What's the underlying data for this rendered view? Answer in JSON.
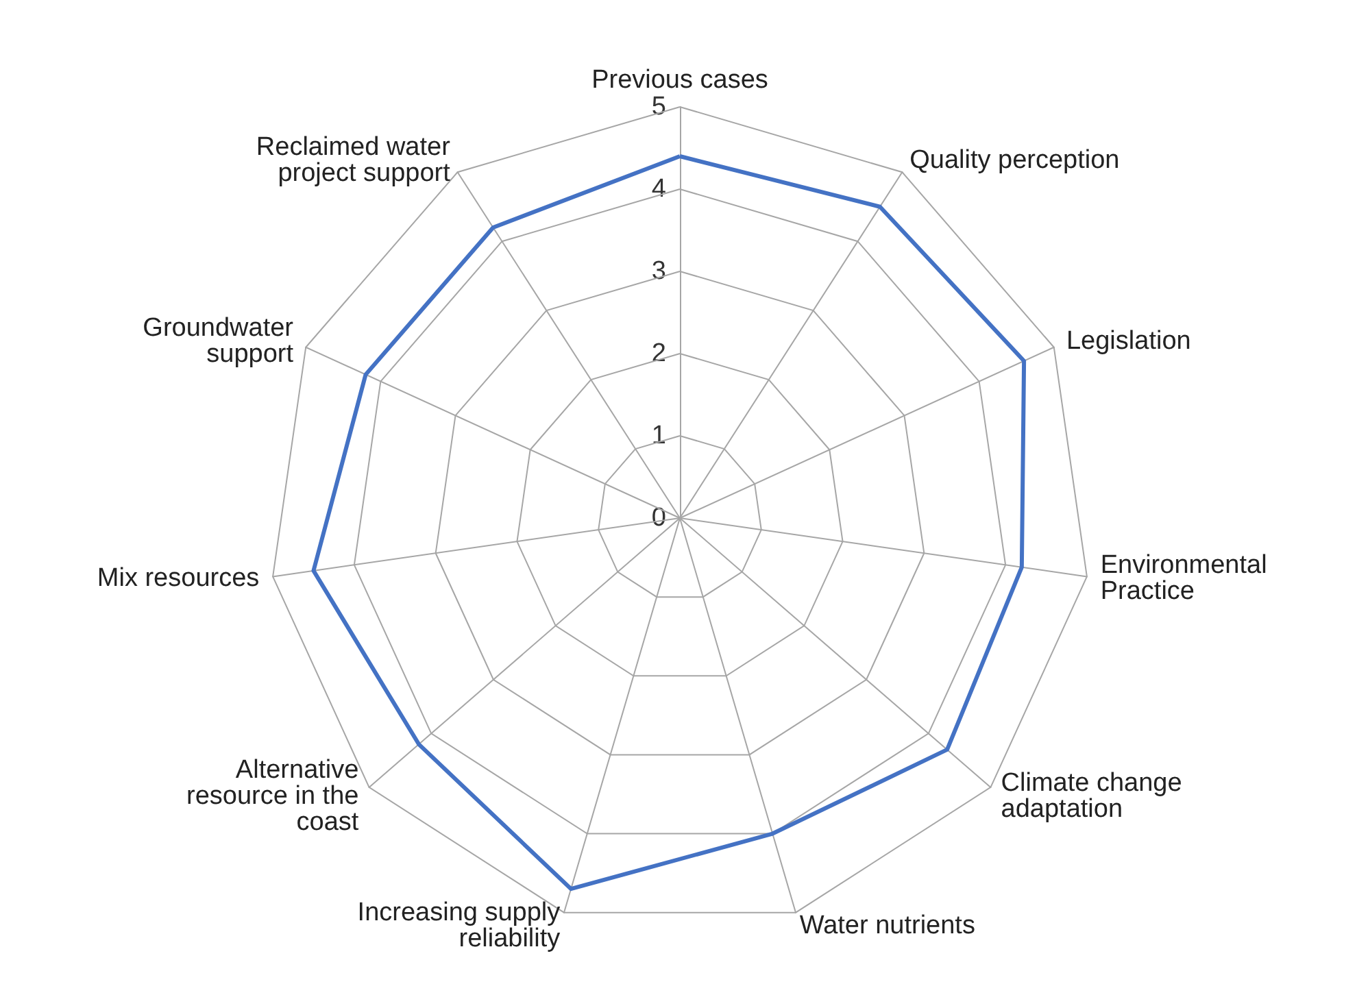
{
  "chart_data": {
    "type": "radar",
    "categories": [
      "Previous cases",
      "Quality perception",
      "Legislation",
      "Environmental Practice",
      "Climate change adaptation",
      "Water nutrients",
      "Increasing supply reliability",
      "Alternative resource in the coast",
      "Mix resources",
      "Groundwater support",
      "Reclaimed water project support"
    ],
    "series": [
      {
        "color": "#4472c4",
        "values": [
          4.4,
          4.5,
          4.6,
          4.2,
          4.3,
          4.0,
          4.7,
          4.2,
          4.5,
          4.2,
          4.2
        ]
      }
    ],
    "ylim": [
      0,
      5
    ],
    "yticks": [
      0,
      1,
      2,
      3,
      4,
      5
    ],
    "grid": true,
    "marker": "none",
    "line_style": "solid"
  }
}
